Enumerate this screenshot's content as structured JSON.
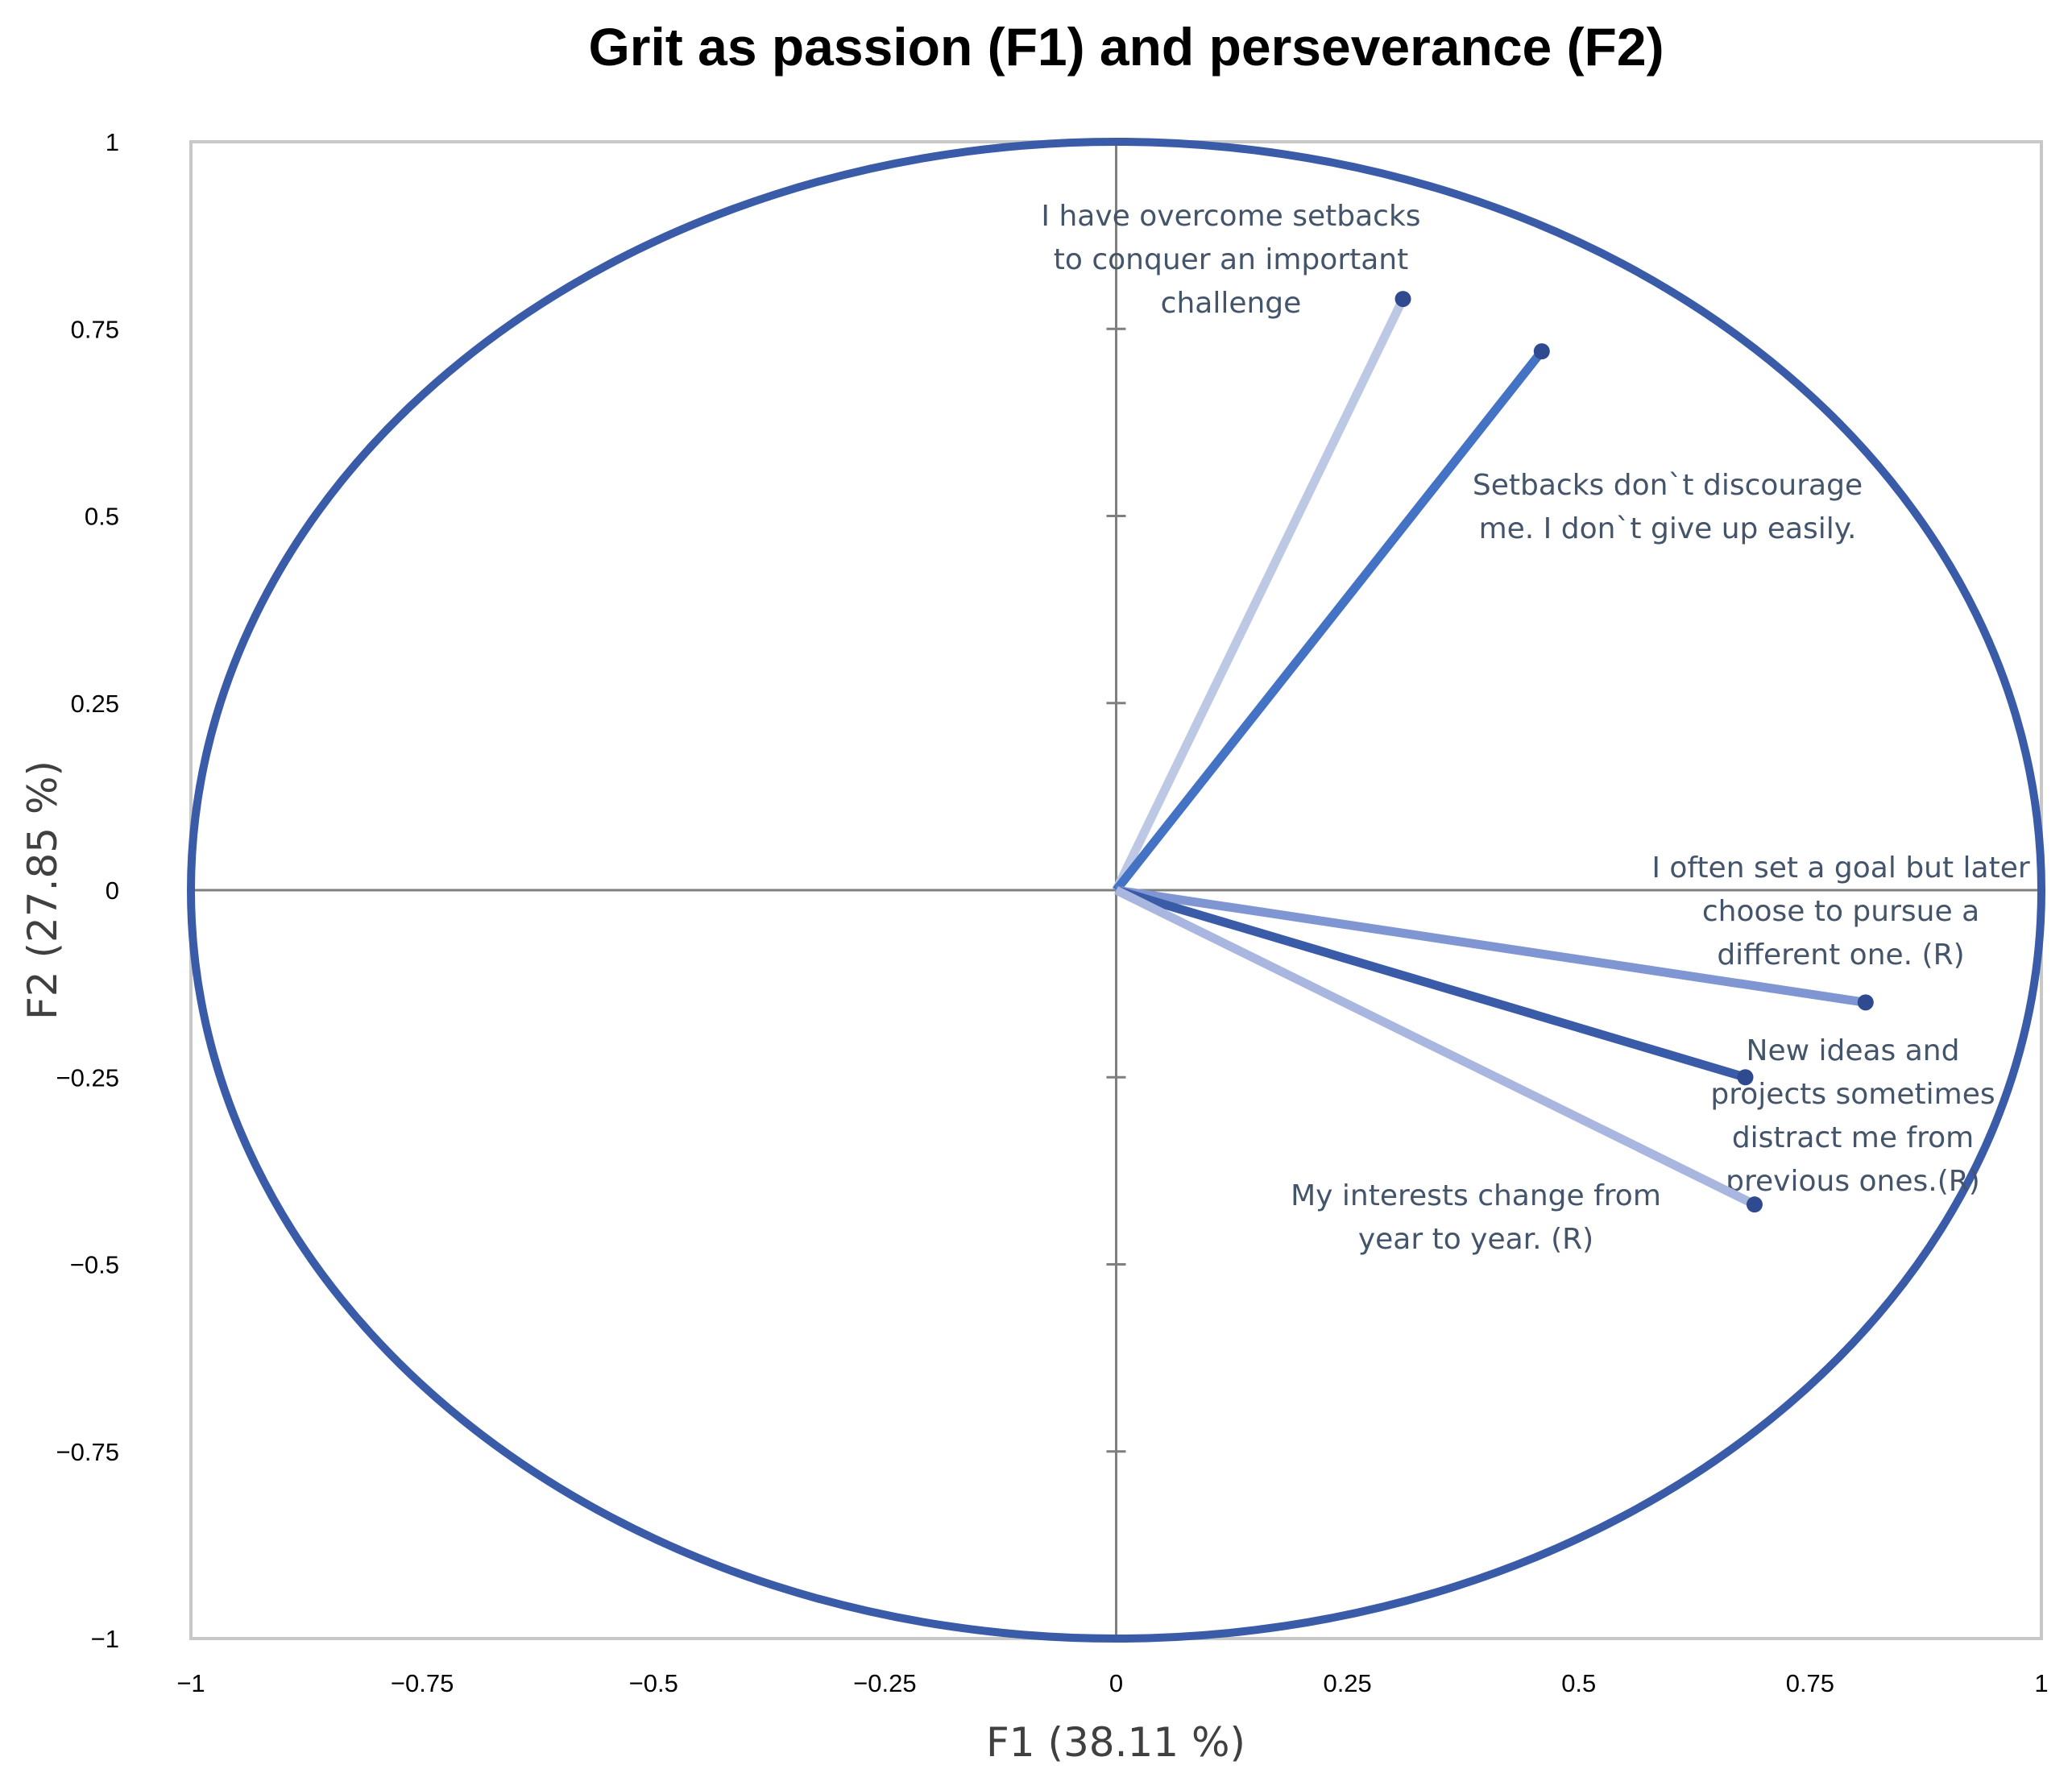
{
  "chart_data": {
    "type": "scatter",
    "title": "Grit as passion (F1) and perseverance (F2)",
    "xlabel": "F1 (38.11 %)",
    "ylabel": "F2 (27.85 %)",
    "xlim": [
      -1,
      1
    ],
    "ylim": [
      -1,
      1
    ],
    "x_ticks": [
      "−1",
      "−0.75",
      "−0.5",
      "−0.25",
      "0",
      "0.25",
      "0.5",
      "0.75",
      "1"
    ],
    "y_ticks": [
      "1",
      "0.75",
      "0.5",
      "0.25",
      "0",
      "−0.25",
      "−0.5",
      "−0.75",
      "−1"
    ],
    "grid": false,
    "legend": "none",
    "correlation_circle": true,
    "circle_color": "#3a5ba7",
    "series": [
      {
        "label_lines": [
          "I have overcome setbacks",
          "to conquer an important",
          "challenge"
        ],
        "x": 0.31,
        "y": 0.79,
        "color": "#bcc8e4"
      },
      {
        "label_lines": [
          "Setbacks don`t discourage",
          "me. I don`t give up easily."
        ],
        "x": 0.46,
        "y": 0.72,
        "color": "#4472c4"
      },
      {
        "label_lines": [
          "I often set a goal but later",
          "choose to pursue a",
          "different one. (R)"
        ],
        "x": 0.81,
        "y": -0.15,
        "color": "#7f96d3"
      },
      {
        "label_lines": [
          "New ideas and",
          "projects sometimes",
          "distract me from",
          "previous ones.(R)"
        ],
        "x": 0.68,
        "y": -0.25,
        "color": "#3a5ba7"
      },
      {
        "label_lines": [
          "My interests change from",
          "year to year. (R)"
        ],
        "x": 0.69,
        "y": -0.42,
        "color": "#a9b6df"
      }
    ]
  }
}
